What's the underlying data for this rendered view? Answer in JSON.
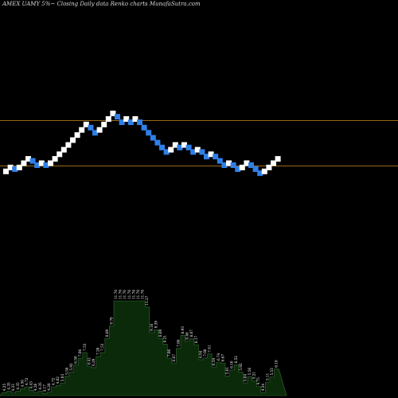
{
  "chart_data": {
    "type": "renko",
    "title": "AMEX  UAMY 5%~  Closing Daily data  Renko  charts MunafaSutra.com",
    "colors": {
      "background": "#000000",
      "up_brick": "#ffffff",
      "down_brick": "#2f7fe8",
      "reference_line": "#9a6a1a",
      "volume_fill": "#0a2a0a",
      "volume_line": "#3a6a3a",
      "volume_label": "#ffffff"
    },
    "price_range": [
      3.7,
      14.2
    ],
    "reference_lines": [
      10.47,
      7.95
    ],
    "bricks": [
      {
        "dir": "up",
        "close": 7.73
      },
      {
        "dir": "up",
        "close": 7.95
      },
      {
        "dir": "down",
        "close": 7.73
      },
      {
        "dir": "up",
        "close": 7.95
      },
      {
        "dir": "up",
        "close": 8.19
      },
      {
        "dir": "up",
        "close": 8.43
      },
      {
        "dir": "down",
        "close": 8.19
      },
      {
        "dir": "down",
        "close": 7.95
      },
      {
        "dir": "up",
        "close": 8.19
      },
      {
        "dir": "down",
        "close": 7.95
      },
      {
        "dir": "up",
        "close": 8.19
      },
      {
        "dir": "up",
        "close": 8.43
      },
      {
        "dir": "up",
        "close": 8.69
      },
      {
        "dir": "up",
        "close": 8.94
      },
      {
        "dir": "up",
        "close": 9.21
      },
      {
        "dir": "up",
        "close": 9.48
      },
      {
        "dir": "up",
        "close": 9.76
      },
      {
        "dir": "up",
        "close": 10.05
      },
      {
        "dir": "up",
        "close": 10.35
      },
      {
        "dir": "down",
        "close": 10.05
      },
      {
        "dir": "down",
        "close": 9.76
      },
      {
        "dir": "up",
        "close": 10.05
      },
      {
        "dir": "up",
        "close": 10.35
      },
      {
        "dir": "up",
        "close": 10.66
      },
      {
        "dir": "up",
        "close": 10.97
      },
      {
        "dir": "down",
        "close": 10.66
      },
      {
        "dir": "down",
        "close": 10.35
      },
      {
        "dir": "up",
        "close": 10.66
      },
      {
        "dir": "down",
        "close": 10.35
      },
      {
        "dir": "up",
        "close": 10.66
      },
      {
        "dir": "down",
        "close": 10.35
      },
      {
        "dir": "down",
        "close": 10.05
      },
      {
        "dir": "down",
        "close": 9.76
      },
      {
        "dir": "down",
        "close": 9.48
      },
      {
        "dir": "down",
        "close": 9.21
      },
      {
        "dir": "down",
        "close": 8.94
      },
      {
        "dir": "down",
        "close": 8.69
      },
      {
        "dir": "up",
        "close": 8.94
      },
      {
        "dir": "up",
        "close": 9.21
      },
      {
        "dir": "down",
        "close": 8.94
      },
      {
        "dir": "up",
        "close": 9.21
      },
      {
        "dir": "down",
        "close": 8.94
      },
      {
        "dir": "down",
        "close": 8.69
      },
      {
        "dir": "up",
        "close": 8.94
      },
      {
        "dir": "down",
        "close": 8.69
      },
      {
        "dir": "down",
        "close": 8.43
      },
      {
        "dir": "up",
        "close": 8.69
      },
      {
        "dir": "down",
        "close": 8.43
      },
      {
        "dir": "down",
        "close": 8.19
      },
      {
        "dir": "down",
        "close": 7.95
      },
      {
        "dir": "up",
        "close": 8.19
      },
      {
        "dir": "down",
        "close": 7.95
      },
      {
        "dir": "down",
        "close": 7.73
      },
      {
        "dir": "up",
        "close": 7.95
      },
      {
        "dir": "up",
        "close": 8.19
      },
      {
        "dir": "down",
        "close": 7.95
      },
      {
        "dir": "down",
        "close": 7.73
      },
      {
        "dir": "down",
        "close": 7.5
      },
      {
        "dir": "up",
        "close": 7.73
      },
      {
        "dir": "up",
        "close": 7.95
      },
      {
        "dir": "up",
        "close": 8.19
      },
      {
        "dir": "up",
        "close": 8.43
      }
    ],
    "brick_price_labels": [
      "4.25",
      "4.35",
      "4.23",
      "4.35",
      "4.56",
      "4.72",
      "4.43",
      "4.26",
      "4.35",
      "4.17",
      "4.28",
      "4.72",
      "4.82",
      "5.03",
      "5.58",
      "5.92",
      "6.50",
      "7.06",
      "7.53",
      "6.41",
      "6.29",
      "7.20",
      "7.53",
      "8.69",
      "9.70",
      "11.76",
      "11.76",
      "11.76",
      "11.76",
      "11.76",
      "11.76",
      "11.76",
      "11.27",
      "9.16",
      "9.39",
      "8.69",
      "8.21",
      "7.06",
      "6.67",
      "7.86",
      "8.93",
      "8.46",
      "8.67",
      "8.17",
      "6.94",
      "7.08",
      "7.41",
      "6.34",
      "6.74",
      "6.67",
      "5.61",
      "6.10",
      "6.52",
      "5.92",
      "5.04",
      "5.56",
      "5.21",
      "4.75",
      "4.24",
      "5.11",
      "5.53",
      "6.18"
    ]
  }
}
